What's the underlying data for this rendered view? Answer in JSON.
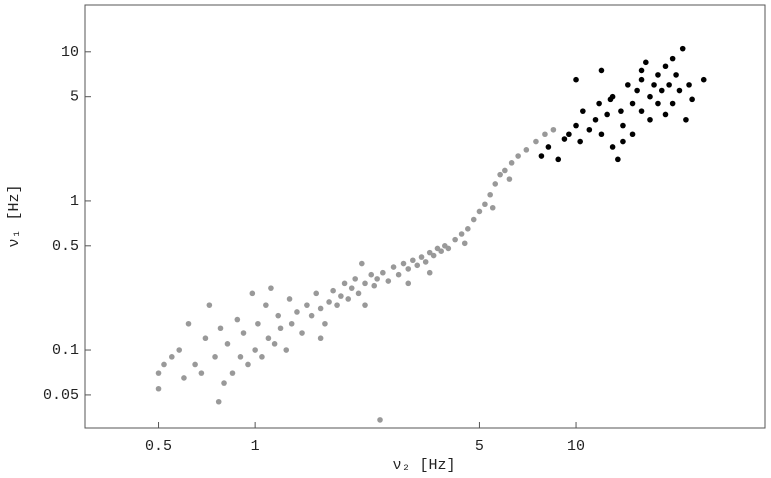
{
  "chart_data": {
    "type": "scatter",
    "x_label": "ν₂  [Hz]",
    "y_label": "ν₁ [Hz]",
    "xscale": "log",
    "yscale": "log",
    "xlim": [
      0.295,
      38.8
    ],
    "ylim": [
      0.03,
      20.6
    ],
    "xticks": [
      0.5,
      1,
      5,
      10
    ],
    "yticks": [
      0.05,
      0.1,
      0.5,
      1,
      5,
      10
    ],
    "series": [
      {
        "color": "#999999",
        "x": [
          0.5,
          0.5,
          0.52,
          0.55,
          0.58,
          0.6,
          0.62,
          0.65,
          0.68,
          0.7,
          0.72,
          0.75,
          0.77,
          0.78,
          0.8,
          0.82,
          0.85,
          0.88,
          0.9,
          0.92,
          0.95,
          0.98,
          1.0,
          1.02,
          1.05,
          1.08,
          1.1,
          1.12,
          1.15,
          1.18,
          1.2,
          1.25,
          1.28,
          1.3,
          1.35,
          1.4,
          1.45,
          1.5,
          1.55,
          1.6,
          1.65,
          1.7,
          1.75,
          1.8,
          1.85,
          1.9,
          1.95,
          2.0,
          2.05,
          2.1,
          2.15,
          2.2,
          2.3,
          2.35,
          2.4,
          2.45,
          2.5,
          2.6,
          2.7,
          2.8,
          2.9,
          3.0,
          3.1,
          3.2,
          3.3,
          3.4,
          3.5,
          3.6,
          3.7,
          3.8,
          3.9,
          4.0,
          4.2,
          4.4,
          4.6,
          4.8,
          5.0,
          5.2,
          5.4,
          5.6,
          5.8,
          6.0,
          6.3,
          6.6,
          7.0,
          7.5,
          8.0,
          8.5,
          3.0,
          2.2,
          1.6,
          4.5,
          5.5,
          6.2,
          3.5
        ],
        "values": [
          0.07,
          0.055,
          0.08,
          0.09,
          0.1,
          0.065,
          0.15,
          0.08,
          0.07,
          0.12,
          0.2,
          0.09,
          0.045,
          0.14,
          0.06,
          0.11,
          0.07,
          0.16,
          0.09,
          0.13,
          0.08,
          0.24,
          0.1,
          0.15,
          0.09,
          0.2,
          0.12,
          0.26,
          0.11,
          0.17,
          0.14,
          0.1,
          0.22,
          0.15,
          0.18,
          0.13,
          0.2,
          0.17,
          0.24,
          0.19,
          0.15,
          0.21,
          0.25,
          0.2,
          0.23,
          0.28,
          0.22,
          0.26,
          0.3,
          0.24,
          0.38,
          0.28,
          0.32,
          0.27,
          0.3,
          0.034,
          0.33,
          0.29,
          0.36,
          0.32,
          0.38,
          0.35,
          0.4,
          0.37,
          0.42,
          0.39,
          0.45,
          0.43,
          0.48,
          0.46,
          0.5,
          0.48,
          0.55,
          0.6,
          0.65,
          0.75,
          0.85,
          0.95,
          1.1,
          1.3,
          1.5,
          1.6,
          1.8,
          2.0,
          2.2,
          2.5,
          2.8,
          3.0,
          0.28,
          0.2,
          0.12,
          0.52,
          0.9,
          1.4,
          0.33
        ]
      },
      {
        "color": "#000000",
        "x": [
          7.8,
          8.2,
          8.8,
          9.2,
          9.5,
          10,
          10,
          10.3,
          10.5,
          11,
          11.5,
          11.8,
          12,
          12,
          12.5,
          13,
          13,
          13.5,
          13.8,
          14,
          14.5,
          15,
          15,
          15.5,
          16,
          16,
          16.5,
          17,
          17,
          17.5,
          18,
          18,
          18.5,
          19,
          19,
          19.5,
          20,
          20.5,
          21,
          21.5,
          22,
          22.5,
          23,
          25,
          14,
          16,
          20,
          12.8
        ],
        "values": [
          2.0,
          2.3,
          1.9,
          2.6,
          2.8,
          3.2,
          6.5,
          2.5,
          4.0,
          3.0,
          3.5,
          4.5,
          2.8,
          7.5,
          3.8,
          2.3,
          5.0,
          1.9,
          4.0,
          3.2,
          6.0,
          4.5,
          2.8,
          5.5,
          6.5,
          4.0,
          8.5,
          5.0,
          3.5,
          6.0,
          4.5,
          7.0,
          5.5,
          3.8,
          8.0,
          6.0,
          4.5,
          7.0,
          5.5,
          10.5,
          3.5,
          6.0,
          4.8,
          6.5,
          2.5,
          7.5,
          9.0,
          4.8
        ]
      }
    ]
  }
}
